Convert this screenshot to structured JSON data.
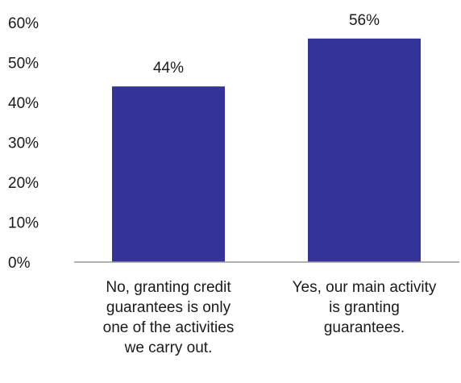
{
  "chart_data": {
    "type": "bar",
    "categories": [
      [
        "No, granting  credit",
        "guarantees is only",
        "one of the activities",
        "we carry out."
      ],
      [
        "Yes, our main activity",
        "is granting",
        "guarantees."
      ]
    ],
    "values": [
      44,
      56
    ],
    "data_labels": [
      "44%",
      "56%"
    ],
    "y_ticks": [
      "0%",
      "10%",
      "20%",
      "30%",
      "40%",
      "50%",
      "60%"
    ],
    "ylim": [
      0,
      60
    ],
    "grid": false,
    "legend": "none",
    "title": "",
    "xlabel": "",
    "ylabel": ""
  },
  "colors": {
    "bar": "#333399",
    "axis": "#999999",
    "text": "#1a1a1a"
  }
}
